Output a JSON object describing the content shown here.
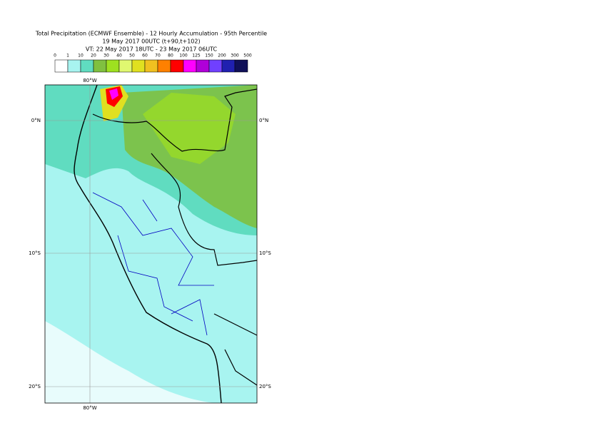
{
  "title_lines": [
    "Total Precipitation (ECMWF Ensemble) - 12 Hourly Accumulation - 95th Percentile",
    "19 May 2017 00UTC (t+90,t+102)",
    "VT: 22 May 2017 18UTC - 23 May 2017 06UTC"
  ],
  "legend": {
    "labels": [
      "0",
      "1",
      "10",
      "20",
      "30",
      "40",
      "50",
      "60",
      "70",
      "80",
      "100",
      "125",
      "150",
      "200",
      "300",
      "500"
    ],
    "colors": [
      "#ffffff",
      "#a8f4f0",
      "#60dcc0",
      "#80c040",
      "#9ee020",
      "#e0f870",
      "#e0e020",
      "#f0c020",
      "#ff8000",
      "#ff0000",
      "#ff00ff",
      "#b000d8",
      "#7040ff",
      "#2020b0",
      "#101058"
    ]
  },
  "map": {
    "lon_labels": [
      "80°W",
      "80°W"
    ],
    "lat_labels": [
      "0°N",
      "10°S",
      "20°S"
    ]
  }
}
